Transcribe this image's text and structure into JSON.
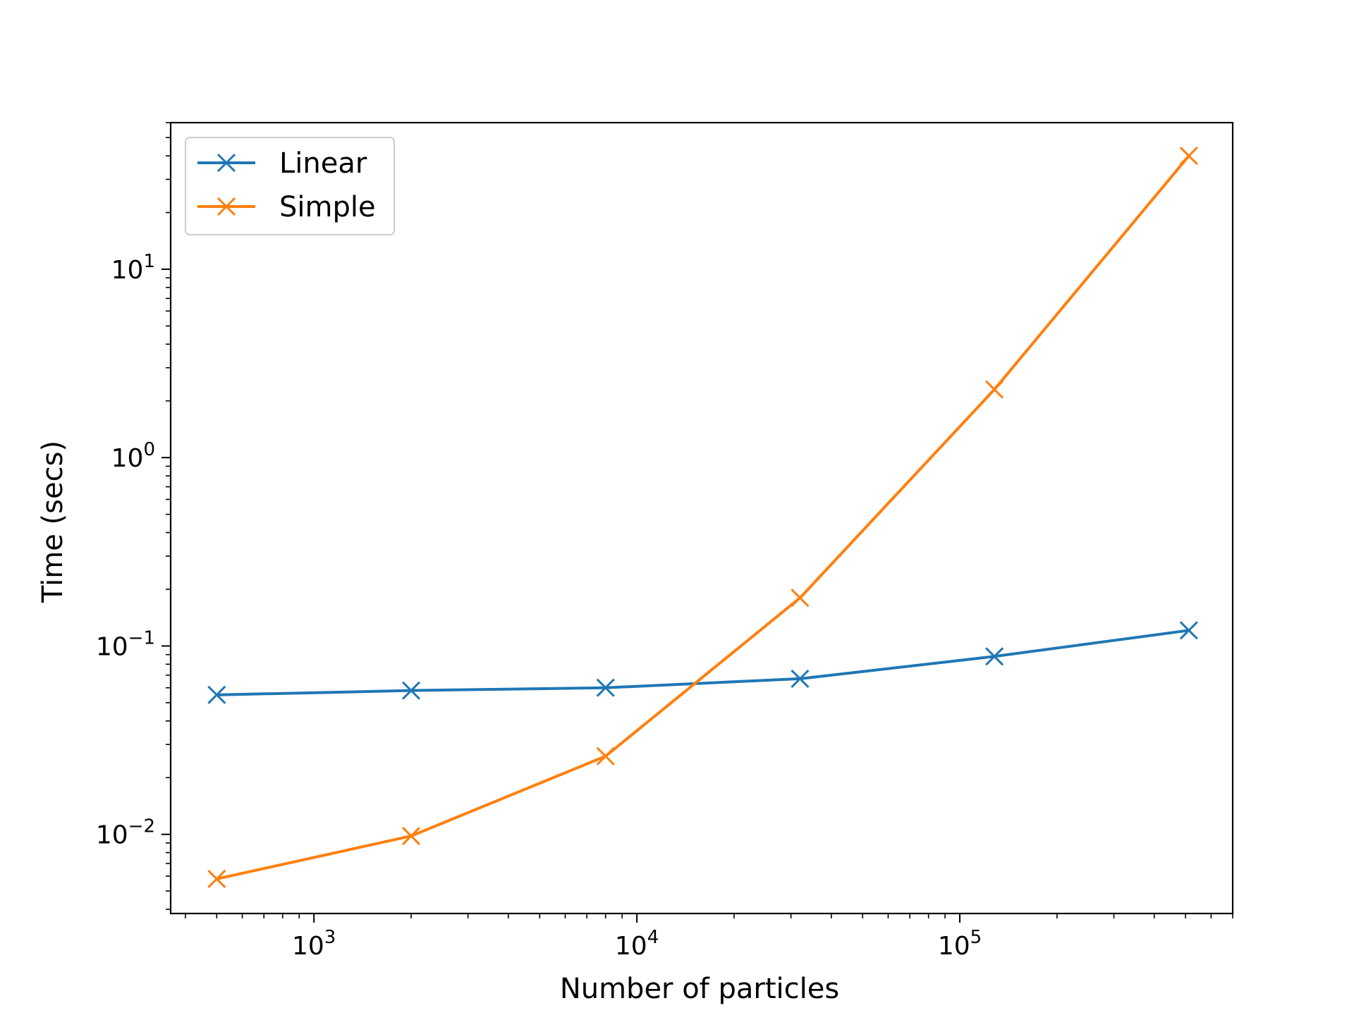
{
  "chart_data": {
    "type": "line",
    "title": "",
    "xlabel": "Number of particles",
    "ylabel": "Time (secs)",
    "xscale": "log",
    "yscale": "log",
    "xlim": [
      360,
      700000
    ],
    "ylim": [
      0.0038,
      60
    ],
    "x": [
      500,
      2000,
      8000,
      32000,
      128000,
      512000
    ],
    "grid": false,
    "legend": "upper-left",
    "marker": "x",
    "series": [
      {
        "name": "Linear",
        "color": "#1f77b4",
        "values": [
          0.055,
          0.058,
          0.06,
          0.067,
          0.088,
          0.121
        ]
      },
      {
        "name": "Simple",
        "color": "#ff7f0e",
        "values": [
          0.0058,
          0.0098,
          0.026,
          0.18,
          2.3,
          40
        ]
      }
    ],
    "x_ticks": [
      {
        "value": 1000,
        "base": "10",
        "exp": "3"
      },
      {
        "value": 10000,
        "base": "10",
        "exp": "4"
      },
      {
        "value": 100000,
        "base": "10",
        "exp": "5"
      }
    ],
    "y_ticks": [
      {
        "value": 0.01,
        "base": "10",
        "exp": "−2"
      },
      {
        "value": 0.1,
        "base": "10",
        "exp": "−1"
      },
      {
        "value": 1,
        "base": "10",
        "exp": "0"
      },
      {
        "value": 10,
        "base": "10",
        "exp": "1"
      }
    ]
  }
}
